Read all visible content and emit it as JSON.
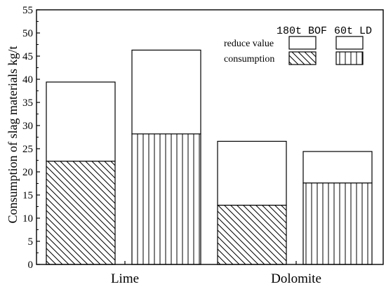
{
  "chart_data": {
    "type": "bar",
    "subtype": "stacked",
    "categories": [
      "Lime",
      "Dolomite"
    ],
    "ylabel": "Consumption of slag materials kg/t",
    "xlabel": "",
    "ylim": [
      0,
      55
    ],
    "yticks": [
      0,
      5,
      10,
      15,
      20,
      25,
      30,
      35,
      40,
      45,
      50,
      55
    ],
    "grid": false,
    "legend_position": "top-right",
    "groups": [
      {
        "name": "180t BOF",
        "consumption": [
          22.3,
          12.8
        ],
        "reduce_value": [
          17.1,
          13.8
        ]
      },
      {
        "name": "60t LD",
        "consumption": [
          28.2,
          17.6
        ],
        "reduce_value": [
          18.1,
          6.8
        ]
      }
    ],
    "components": [
      {
        "key": "reduce_value",
        "label": "reduce value"
      },
      {
        "key": "consumption",
        "label": "consumption"
      }
    ]
  },
  "colors": {
    "axis": "#000000",
    "bar_fill": "#ffffff",
    "hatch": "#000000"
  }
}
